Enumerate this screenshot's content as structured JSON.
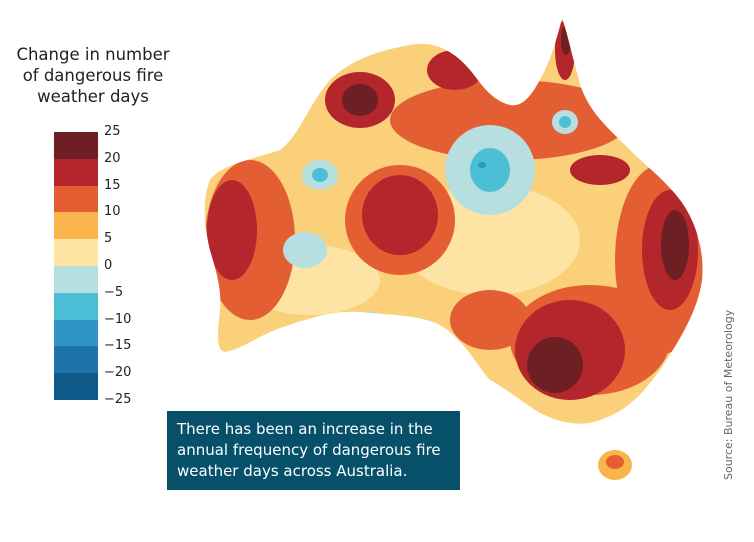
{
  "legend": {
    "title_line1": "Change in number",
    "title_line2": "of dangerous fire",
    "title_line3": "weather days",
    "labels": [
      "25",
      "20",
      "15",
      "10",
      "5",
      "0",
      "−5",
      "−10",
      "−15",
      "−20",
      "−25"
    ],
    "colors": [
      "#6e1f24",
      "#b2262c",
      "#e35f33",
      "#f9b54c",
      "#fde4a4",
      "#b7dfdf",
      "#4bbfd6",
      "#2f95c4",
      "#1d73aa",
      "#115b8a"
    ]
  },
  "caption": {
    "text": "There has been an increase in the annual frequency of dangerous fire weather days across Australia."
  },
  "source": "Source: Bureau of Meteorology",
  "map": {
    "region": "Australia",
    "colors": {
      "land_base": "#fbd07a",
      "very_high": "#6e1f24",
      "high": "#b2262c",
      "moderate": "#e35f33",
      "low": "#f9b54c",
      "slight": "#fde4a4",
      "decrease": "#b7dfdf",
      "decrease_strong": "#4bbfd6",
      "decrease_max": "#2f95c4"
    }
  }
}
